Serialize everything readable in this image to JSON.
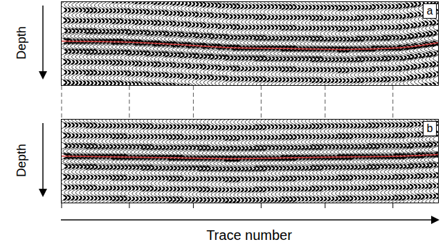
{
  "chart_data": {
    "type": "seismic_wiggle",
    "x_label": "Trace number",
    "y_label": "Depth",
    "tick_labels": false,
    "xlim": [
      0,
      100
    ],
    "ylim": [
      0,
      100
    ],
    "xticks": [
      0,
      18,
      35,
      53,
      70,
      88
    ],
    "panels": [
      {
        "label": "a",
        "color": "#d03030",
        "horizon_x": [
          0,
          15,
          30,
          45,
          60,
          75,
          90,
          100
        ],
        "horizon_depth": [
          47,
          48,
          51,
          55,
          56,
          57,
          55,
          49
        ]
      },
      {
        "label": "b",
        "color": "#d03030",
        "horizon_x": [
          0,
          15,
          30,
          45,
          60,
          75,
          90,
          100
        ],
        "horizon_depth": [
          44,
          45,
          46,
          47,
          46,
          45,
          44,
          42
        ]
      }
    ]
  }
}
